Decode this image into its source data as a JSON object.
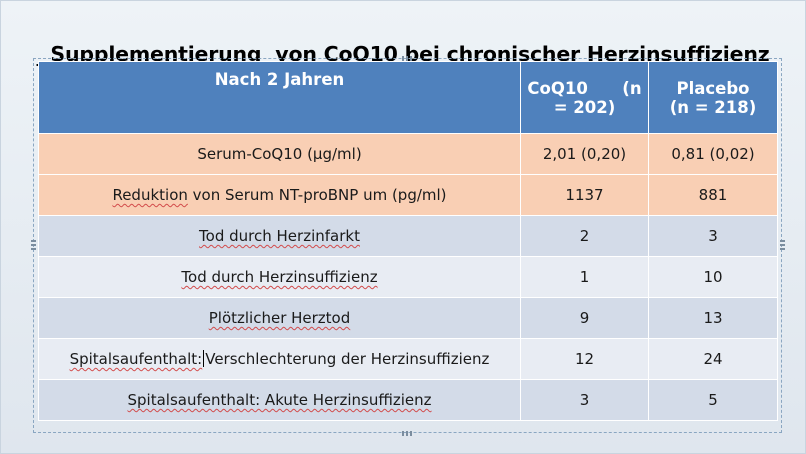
{
  "slide": {
    "title": "Supplementierung  von CoQ10 bei chronischer Herzinsuffizienz"
  },
  "table": {
    "headers": {
      "main": "Nach 2 Jahren",
      "coq10_line1": "CoQ10      (n",
      "coq10_line2": "= 202)",
      "placebo_line1": "Placebo",
      "placebo_line2": "(n = 218)"
    },
    "rows": [
      {
        "label": "Serum-CoQ10 (µg/ml)",
        "coq10": "2,01 (0,20)",
        "placebo": "0,81 (0,02)"
      },
      {
        "label_pre": "Reduktion",
        "label_post": " von Serum NT-proBNP um (pg/ml)",
        "coq10": "1137",
        "placebo": "881"
      },
      {
        "label": "Tod durch Herzinfarkt",
        "coq10": "2",
        "placebo": "3"
      },
      {
        "label": "Tod durch Herzinsuffizienz",
        "coq10": "1",
        "placebo": "10"
      },
      {
        "label": "Plötzlicher Herztod",
        "coq10": "9",
        "placebo": "13"
      },
      {
        "label_pre": "Spitalsaufenthalt:",
        "label_post": "Verschlechterung der Herzinsuffizienz",
        "coq10": "12",
        "placebo": "24"
      },
      {
        "label": "Spitalsaufenthalt: Akute Herzinsuffizienz",
        "coq10": "3",
        "placebo": "5"
      }
    ]
  },
  "colors": {
    "header_bg": "#4f81bd",
    "row_orange": "#f9cfb4",
    "row_blue": "#d3dbe8",
    "row_light": "#e8ecf3",
    "spellcheck_underline": "#d24b4b"
  }
}
